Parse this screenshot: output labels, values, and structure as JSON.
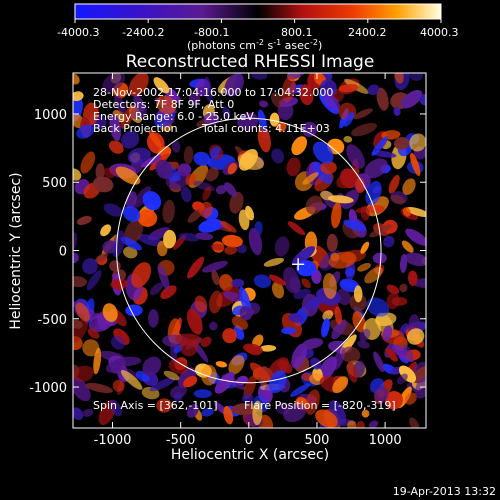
{
  "chart_data": {
    "type": "heatmap",
    "title": "Reconstructed RHESSI Image",
    "xlabel": "Heliocentric X (arcsec)",
    "ylabel": "Heliocentric Y (arcsec)",
    "xlim": [
      -1290,
      1300
    ],
    "ylim": [
      -1300,
      1300
    ],
    "x_ticks": [
      "-1000",
      "-500",
      "0",
      "500",
      "1000"
    ],
    "y_ticks": [
      "-1000",
      "-500",
      "0",
      "500",
      "1000"
    ],
    "x_tick_values": [
      -1000,
      -500,
      0,
      500,
      1000
    ],
    "y_tick_values": [
      -1000,
      -500,
      0,
      500,
      1000
    ],
    "colorbar": {
      "labels": [
        "-4000.3",
        "-2400.2",
        "-800.1",
        "800.1",
        "2400.2",
        "4000.3"
      ],
      "min": -4000.3,
      "max": 4000.3,
      "units_prefix": "(photons cm",
      "units_exp1": "-2",
      "units_s": " s",
      "units_exp2": "-1",
      "units_asec": " asec",
      "units_exp3": "-2",
      "units_close": ")"
    },
    "solar_limb_radius_arcsec": 970,
    "cross_marker": [
      362,
      -101
    ],
    "colors": {
      "limb": "#ffffff",
      "background": "#000000"
    }
  },
  "annotations": {
    "time_range": "28-Nov-2002 17:04:16.000 to 17:04:32.000",
    "detectors": "Detectors: 7F 8F 9F, Att 0",
    "energy_range": "Energy Range: 6.0 - 25.0 keV",
    "method": "Back Projection",
    "total_counts": "Total counts: 4.11E+03",
    "spin_axis": "Spin Axis = [362,-101]",
    "flare_position": "Flare Position = [-820,-319]"
  },
  "footer": {
    "timestamp": "19-Apr-2013 13:32"
  }
}
